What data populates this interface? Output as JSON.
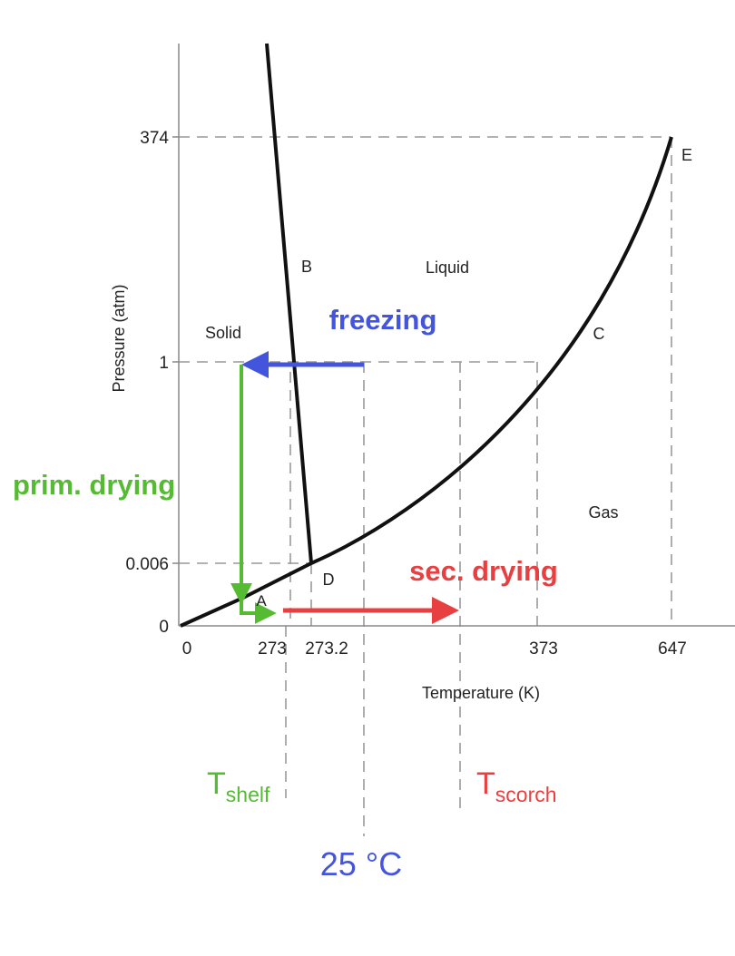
{
  "y_axis": {
    "label": "Pressure (atm)",
    "ticks": [
      "374",
      "1",
      "0.006",
      "0"
    ]
  },
  "x_axis": {
    "label": "Temperature (K)",
    "ticks": [
      "0",
      "273",
      "273.2",
      "373",
      "647"
    ]
  },
  "regions": {
    "solid": "Solid",
    "liquid": "Liquid",
    "gas": "Gas"
  },
  "points": {
    "A": "A",
    "B": "B",
    "C": "C",
    "D": "D",
    "E": "E"
  },
  "process_labels": {
    "freezing": "freezing",
    "primary_drying": "prim. drying",
    "secondary_drying": "sec. drying"
  },
  "temperature_markers": {
    "shelf": {
      "main": "T",
      "sub": "shelf"
    },
    "scorch": {
      "main": "T",
      "sub": "scorch"
    },
    "room": "25 °C"
  },
  "colors": {
    "curve": "#111111",
    "axis": "#888888",
    "dashed": "#999999",
    "freezing": "#4455dd",
    "primary_drying": "#55bb33",
    "secondary_drying": "#e84040"
  }
}
